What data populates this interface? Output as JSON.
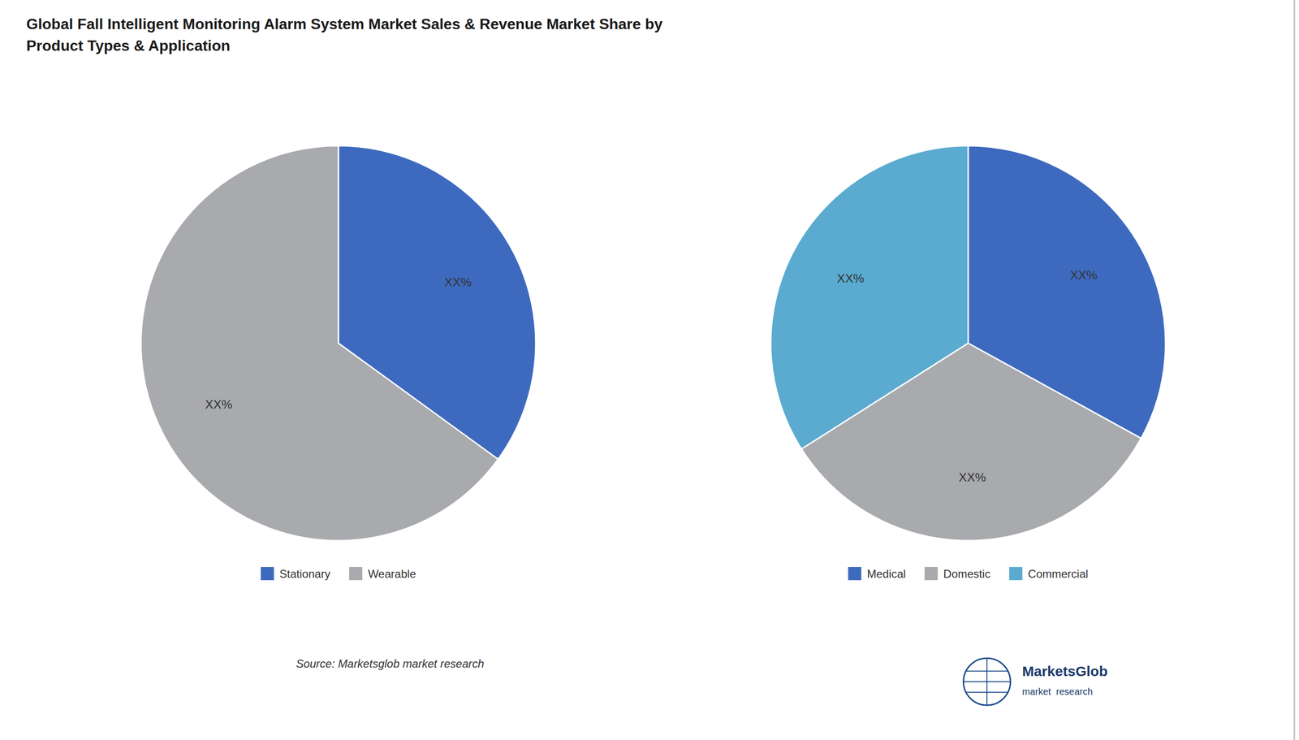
{
  "chart_data": [
    {
      "type": "pie",
      "title": "Global Fall Intelligent Monitoring Alarm System Market Sales & Revenue Market Share by\nProduct Types & Application",
      "categories": [
        "Stationary",
        "Wearable"
      ],
      "values": [
        35,
        65
      ],
      "colors": [
        "#3d6abf",
        "#a8aaad"
      ],
      "legend": "bottom",
      "annotations": [
        "XX%",
        "XX%"
      ],
      "source": "Source: Marketsglob market research",
      "logo_text": [
        "MarketsGlob",
        "market  research"
      ]
    },
    {
      "type": "pie",
      "categories": [
        "Medical",
        "Domestic",
        "Commercial"
      ],
      "values": [
        33,
        33,
        34
      ],
      "colors": [
        "#3d6abf",
        "#a8aaad",
        "#5aabcf"
      ],
      "legend": "bottom",
      "annotations": [
        "XX%",
        "XX%",
        "XX%"
      ]
    }
  ]
}
